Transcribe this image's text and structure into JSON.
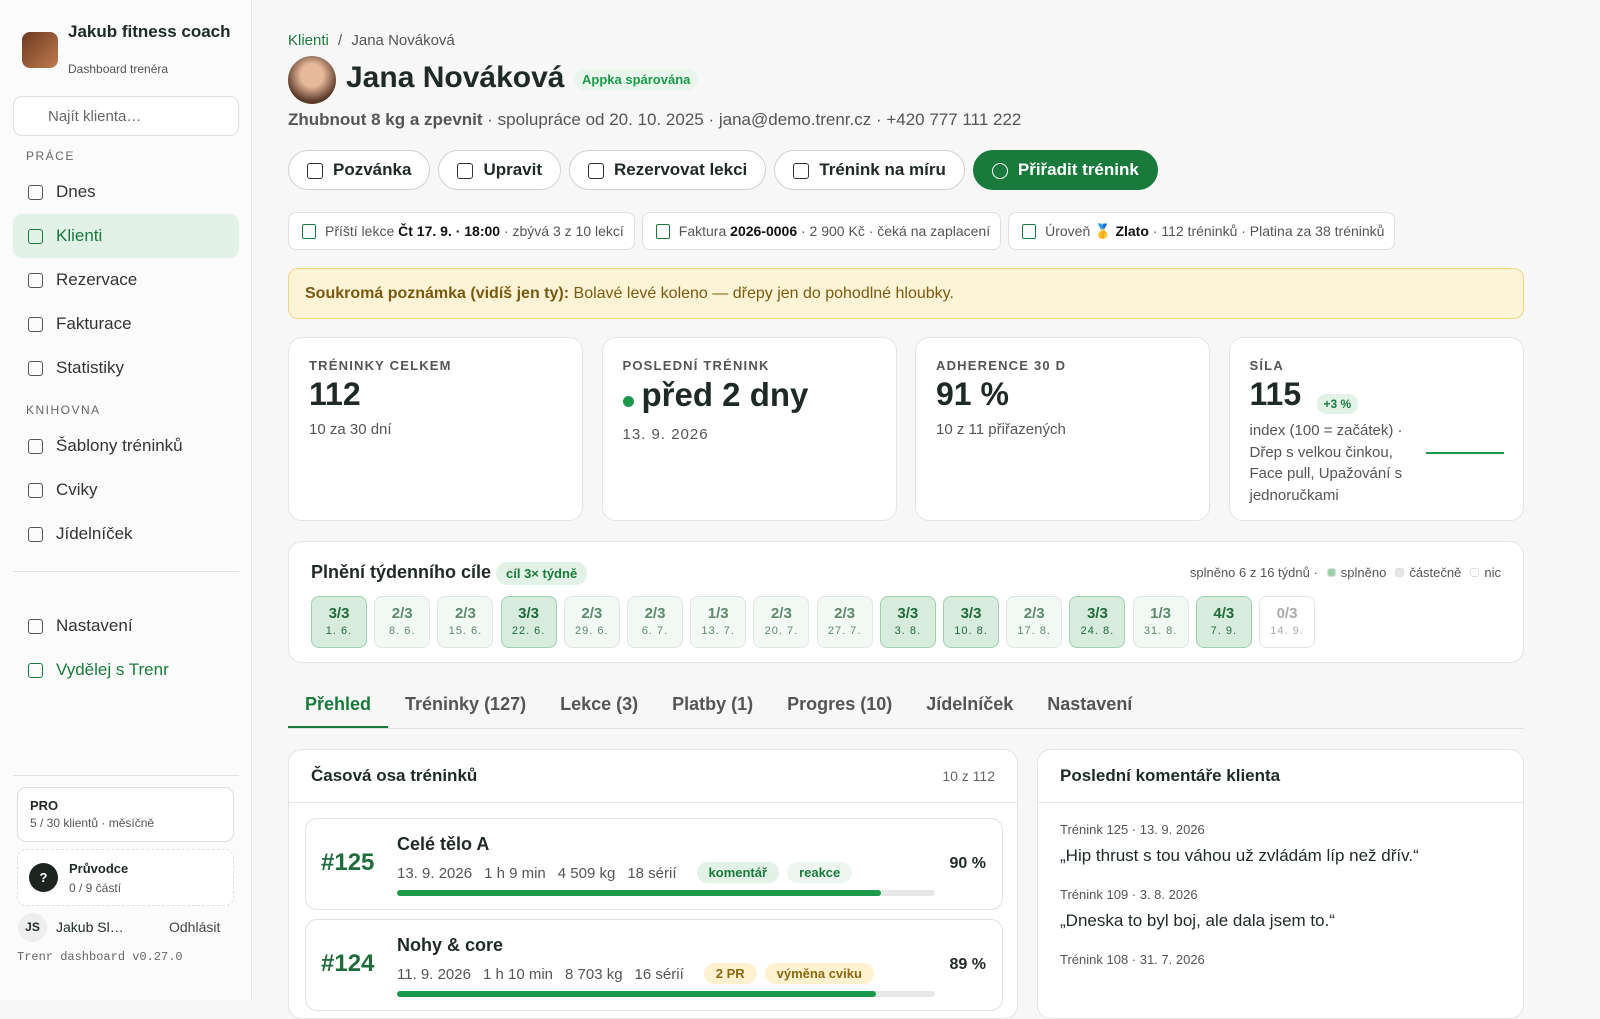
{
  "sidebar": {
    "brand": {
      "name": "Jakub fitness coach",
      "subtitle": "Dashboard trenéra"
    },
    "search_placeholder": "Najít klienta…",
    "sections": [
      {
        "title": "PRÁCE",
        "items": [
          "Dnes",
          "Klienti",
          "Rezervace",
          "Fakturace",
          "Statistiky"
        ]
      },
      {
        "title": "KNIHOVNA",
        "items": [
          "Šablony tréninků",
          "Cviky",
          "Jídelníček"
        ]
      }
    ],
    "active_item": "Klienti",
    "bottom_items": [
      "Nastavení",
      "Vydělej s Trenr"
    ],
    "plan": {
      "name": "PRO",
      "detail": "5 / 30 klientů · měsíčně"
    },
    "guide": {
      "icon": "?",
      "title": "Průvodce",
      "progress": "0 / 9 částí"
    },
    "user": {
      "initials": "JS",
      "name": "Jakub Sl…",
      "logout": "Odhlásit"
    },
    "version": "Trenr dashboard v0.27.0"
  },
  "header": {
    "breadcrumb": [
      "Klienti",
      "Jana Nováková"
    ],
    "separator": "/",
    "name": "Jana Nováková",
    "badge": "Appka spárována",
    "goal": "Zhubnout 8 kg a zpevnit",
    "meta": "· spolupráce od 20. 10. 2025 · jana@demo.trenr.cz · +420 777 111 222"
  },
  "actions": [
    "Pozvánka",
    "Upravit",
    "Rezervovat lekci",
    "Trénink na míru",
    "Přiřadit trénink"
  ],
  "info_chips": [
    {
      "label": "Příští lekce",
      "strong": "Čt 17. 9. · 18:00",
      "rest": "· zbývá 3 z 10 lekcí"
    },
    {
      "label": "Faktura",
      "strong": "2026-0006",
      "rest": "· 2 900 Kč · čeká na zaplacení"
    },
    {
      "label": "Úroveň 🥇",
      "strong": "Zlato",
      "rest": "· 112 tréninků · Platina za 38 tréninků"
    }
  ],
  "note": {
    "label": "Soukromá poznámka (vidíš jen ty):",
    "text": "Bolavé levé koleno — dřepy jen do pohodlné hloubky."
  },
  "stats": [
    {
      "label": "TRÉNINKY CELKEM",
      "value": "112",
      "detail": "10 za 30 dní"
    },
    {
      "label": "POSLEDNÍ TRÉNINK",
      "value": "před 2 dny",
      "detail": "13. 9. 2026"
    },
    {
      "label": "ADHERENCE 30 D",
      "value": "91 %",
      "detail": "10 z 11 přiřazených"
    },
    {
      "label": "SÍLA",
      "value": "115",
      "badge": "+3 %",
      "detail": "index (100 = začátek) · Dřep s velkou činkou, Face pull, Upažování s jednoručkami"
    }
  ],
  "weekly": {
    "title": "Plnění týdenního cíle",
    "badge": "cíl 3× týdně",
    "summary": "splněno 6 z 16 týdnů ·",
    "legend": [
      "splněno",
      "částečně",
      "nic"
    ],
    "weeks": [
      {
        "score": "3/3",
        "date": "1. 6.",
        "status": "done"
      },
      {
        "score": "2/3",
        "date": "8. 6.",
        "status": "partial"
      },
      {
        "score": "2/3",
        "date": "15. 6.",
        "status": "partial"
      },
      {
        "score": "3/3",
        "date": "22. 6.",
        "status": "done"
      },
      {
        "score": "2/3",
        "date": "29. 6.",
        "status": "partial"
      },
      {
        "score": "2/3",
        "date": "6. 7.",
        "status": "partial"
      },
      {
        "score": "1/3",
        "date": "13. 7.",
        "status": "partial"
      },
      {
        "score": "2/3",
        "date": "20. 7.",
        "status": "partial"
      },
      {
        "score": "2/3",
        "date": "27. 7.",
        "status": "partial"
      },
      {
        "score": "3/3",
        "date": "3. 8.",
        "status": "done"
      },
      {
        "score": "3/3",
        "date": "10. 8.",
        "status": "done"
      },
      {
        "score": "2/3",
        "date": "17. 8.",
        "status": "partial"
      },
      {
        "score": "3/3",
        "date": "24. 8.",
        "status": "done"
      },
      {
        "score": "1/3",
        "date": "31. 8.",
        "status": "partial"
      },
      {
        "score": "4/3",
        "date": "7. 9.",
        "status": "done"
      },
      {
        "score": "0/3",
        "date": "14. 9.",
        "status": "none"
      }
    ]
  },
  "tabs": [
    "Přehled",
    "Tréninky (127)",
    "Lekce (3)",
    "Platby (1)",
    "Progres (10)",
    "Jídelníček",
    "Nastavení"
  ],
  "active_tab": 0,
  "timeline": {
    "title": "Časová osa tréninků",
    "count": "10 z 112",
    "items": [
      {
        "number": "#125",
        "name": "Celé tělo A",
        "date": "13. 9. 2026",
        "duration": "1 h 9 min",
        "volume": "4 509 kg",
        "sets": "18 sérií",
        "tags": [
          "komentář",
          "reakce"
        ],
        "completion": 90,
        "completion_label": "90 %"
      },
      {
        "number": "#124",
        "name": "Nohy & core",
        "date": "11. 9. 2026",
        "duration": "1 h 10 min",
        "volume": "8 703 kg",
        "sets": "16 sérií",
        "tags": [
          "2 PR",
          "výměna cviku"
        ],
        "completion": 89,
        "completion_label": "89 %"
      }
    ]
  },
  "comments": {
    "title": "Poslední komentáře klienta",
    "items": [
      {
        "meta": "Trénink 125 · 13. 9. 2026",
        "text": "„Hip thrust s tou váhou už zvládám líp než dřív.“"
      },
      {
        "meta": "Trénink 109 · 3. 8. 2026",
        "text": "„Dneska to byl boj, ale dala jsem to.“"
      },
      {
        "meta": "Trénink 108 · 31. 7. 2026"
      }
    ]
  }
}
